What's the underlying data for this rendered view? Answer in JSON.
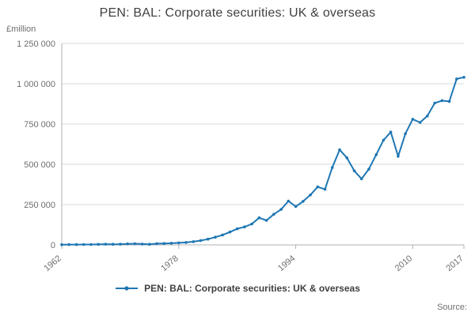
{
  "header": {
    "title": "PEN: BAL: Corporate securities: UK & overseas"
  },
  "chart_data": {
    "type": "line",
    "title": "PEN: BAL: Corporate securities: UK & overseas",
    "unit_label": "£million",
    "xlim": [
      1962,
      2017
    ],
    "ylim": [
      0,
      1250000
    ],
    "grid": "horizontal",
    "legend_position": "bottom",
    "line_color": "#1f77b4",
    "grid_color": "#d9d9d9",
    "axis_color": "#b0b0b0",
    "tick_label_color": "#6d6e71",
    "xticks": {
      "values": [
        1962,
        1978,
        1994,
        2010,
        2017
      ],
      "labels": [
        "1962",
        "1978",
        "1994",
        "2010",
        "2017"
      ]
    },
    "yticks": {
      "values": [
        0,
        250000,
        500000,
        750000,
        1000000,
        1250000
      ],
      "labels": [
        "0",
        "250 000",
        "500 000",
        "750 000",
        "1 000 000",
        "1 250 000"
      ]
    },
    "series": [
      {
        "name": "PEN: BAL: Corporate securities: UK & overseas",
        "x": [
          1962,
          1963,
          1964,
          1965,
          1966,
          1967,
          1968,
          1969,
          1970,
          1971,
          1972,
          1973,
          1974,
          1975,
          1976,
          1977,
          1978,
          1979,
          1980,
          1981,
          1982,
          1983,
          1984,
          1985,
          1986,
          1987,
          1988,
          1989,
          1990,
          1991,
          1992,
          1993,
          1994,
          1995,
          1996,
          1997,
          1998,
          1999,
          2000,
          2001,
          2002,
          2003,
          2004,
          2005,
          2006,
          2007,
          2008,
          2009,
          2010,
          2011,
          2012,
          2013,
          2014,
          2015,
          2016,
          2017
        ],
        "values": [
          1500,
          1800,
          2000,
          2300,
          2500,
          3200,
          4600,
          4100,
          4400,
          6200,
          7200,
          5200,
          3900,
          7600,
          8800,
          10500,
          12500,
          15000,
          20000,
          27000,
          36000,
          48000,
          62000,
          80000,
          100000,
          112000,
          130000,
          168000,
          152000,
          190000,
          220000,
          272000,
          238000,
          270000,
          310000,
          360000,
          345000,
          480000,
          590000,
          540000,
          460000,
          410000,
          470000,
          560000,
          650000,
          700000,
          550000,
          690000,
          780000,
          760000,
          800000,
          880000,
          895000,
          890000,
          1030000,
          1040000
        ]
      }
    ]
  },
  "legend": {
    "label": "PEN: BAL: Corporate securities: UK & overseas"
  },
  "footer": {
    "source_label": "Source:"
  }
}
